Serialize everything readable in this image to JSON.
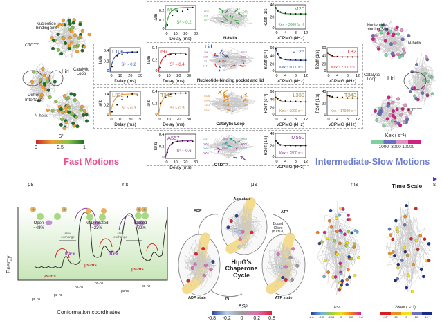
{
  "fast": {
    "title": "Fast Motions",
    "title_color": "#e8508f",
    "structure_labels": {
      "nbs": "Nucleotide-\nbinding Site",
      "ctd": "CTD",
      "ctd_sup": "amp",
      "lid": "Lid",
      "catalytic": "Catalytic\nLoop",
      "dimer": "Dimer\nInterface",
      "nhelix": "N-helix"
    },
    "colorbar": {
      "label": "S²",
      "ticks": [
        "0",
        "0.5",
        "1"
      ],
      "colors": [
        "#c62828",
        "#f0a030",
        "#8bc34a",
        "#1b6e2a"
      ]
    }
  },
  "slow": {
    "title": "Intermediate-Slow Motions",
    "title_color": "#6f7fcf",
    "structure_labels": {
      "nbs": "Nucleotide-\nbinding Site",
      "nhelix": "N-helix",
      "catalytic": "Catalytic\nLoop",
      "lid": "Lid",
      "ctd": "CTD",
      "ctd_sup": "amp"
    },
    "colorbar": {
      "label": "Kex ( s⁻¹)",
      "ticks": [
        "1000",
        "3000",
        "10000"
      ],
      "colors": [
        "#7fcfa0",
        "#6a70c0",
        "#e090c0",
        "#d02080"
      ]
    }
  },
  "relaxation_plots": [
    {
      "residue": "M20",
      "color": "#43a047",
      "annotation": "S² ~ 0.2",
      "ylabel": "Ia/Ib",
      "xlabel": "Delay (ms)",
      "xticks": [
        0,
        10,
        20,
        30
      ],
      "yticks": [
        0,
        0.1,
        0.2
      ],
      "ylim": [
        0,
        0.25
      ],
      "x": [
        2,
        7,
        12,
        17,
        22,
        27
      ],
      "y": [
        0.05,
        0.15,
        0.19,
        0.19,
        0.21,
        0.23
      ]
    },
    {
      "residue": "L106",
      "color": "#3b5bb0",
      "annotation": "S² ~ 0.2",
      "ylabel": "Ia/Ib",
      "xlabel": "Delay (ms)",
      "xticks": [
        0,
        10,
        20,
        30
      ],
      "yticks": [
        0,
        0.2,
        0.4
      ],
      "ylim": [
        0,
        0.45
      ],
      "x": [
        2,
        7,
        12,
        17,
        22,
        27
      ],
      "y": [
        0.1,
        0.3,
        0.33,
        0.35,
        0.37,
        0.37
      ]
    },
    {
      "residue": "I97",
      "color": "#e03030",
      "annotation": "S² ~ 0.4",
      "ylabel": "Ia/Ib",
      "xlabel": "Delay (ms)",
      "xticks": [
        0,
        10,
        20,
        30
      ],
      "yticks": [
        0,
        0.2,
        0.4
      ],
      "ylim": [
        0,
        0.4
      ],
      "x": [
        2,
        7,
        12,
        17,
        22,
        27
      ],
      "y": [
        0.07,
        0.25,
        0.29,
        0.29,
        0.31,
        0.29
      ]
    },
    {
      "residue": "L332",
      "color": "#f0a040",
      "label_color": "#a88a50",
      "annotation": "S² ~ 0.3",
      "ylabel": "Ia/Ib",
      "xlabel": "Delay (ms)",
      "xticks": [
        0,
        10,
        20,
        30
      ],
      "yticks": [
        0,
        0.2,
        0.4
      ],
      "ylim": [
        0,
        0.45
      ],
      "x": [
        2,
        7,
        12,
        17,
        22,
        27
      ],
      "y": [
        0.07,
        0.2,
        0.3,
        0.35,
        0.4,
        0.38
      ]
    },
    {
      "residue": "T343",
      "color": "#f0a040",
      "label_color": "#a88a50",
      "annotation": "S² ~ 0.5",
      "ylabel": "Ia/Ib",
      "xlabel": "Delay (ms)",
      "xticks": [
        0,
        10,
        20,
        30
      ],
      "yticks": [
        0,
        0.2,
        0.4
      ],
      "ylim": [
        0,
        0.4
      ],
      "x": [
        2,
        7,
        12,
        17,
        22,
        27
      ],
      "y": [
        0.2,
        0.3,
        0.35,
        0.36,
        0.37,
        0.37
      ]
    },
    {
      "residue": "A557",
      "color": "#8a3a9a",
      "annotation": "S² ~ 0.6",
      "ylabel": "Ia/Ib",
      "xlabel": "Delay (ms)",
      "xticks": [
        0,
        10,
        20,
        30
      ],
      "yticks": [
        0,
        0.2,
        0.4
      ],
      "ylim": [
        0,
        0.4
      ],
      "x": [
        2,
        7,
        12,
        17,
        22,
        27
      ],
      "y": [
        0.1,
        0.25,
        0.28,
        0.29,
        0.28,
        0.28
      ]
    }
  ],
  "cpmg_plots": [
    {
      "residue": "M20",
      "color": "#43a047",
      "annotation": "Kex ~ 3000 (s⁻¹)",
      "ylabel": "R2eff (1/s)",
      "xlabel": "νCPMG (kHz)",
      "xticks": [
        0,
        4,
        8,
        12
      ],
      "yticks": [
        0,
        20,
        40
      ],
      "ylim": [
        0,
        40
      ],
      "x": [
        0.2,
        1,
        2,
        4,
        6,
        8,
        10,
        12
      ],
      "y": [
        35,
        30,
        28,
        26,
        25,
        25,
        25,
        25
      ]
    },
    {
      "residue": "V125",
      "color": "#3b5bb0",
      "annotation": "Kex ~ 6000 s⁻¹",
      "ylabel": "R2eff (s⁻¹)",
      "xlabel": "νCPMG (kHz)",
      "xticks": [
        0,
        4,
        8,
        12
      ],
      "yticks": [
        0,
        20,
        40,
        60
      ],
      "ylim": [
        0,
        60
      ],
      "x": [
        0.2,
        1,
        2,
        4,
        6,
        8,
        10,
        12
      ],
      "y": [
        58,
        45,
        35,
        31,
        30,
        30,
        29,
        29
      ]
    },
    {
      "residue": "L32",
      "color": "#e03030",
      "annotation": "Kex ~ 7700 s⁻¹",
      "ylabel": "R2eff (1/s)",
      "xlabel": "νCPMG (kHz)",
      "xticks": [
        0,
        4,
        8,
        12
      ],
      "yticks": [
        0,
        20,
        40,
        60
      ],
      "ylim": [
        0,
        60
      ],
      "x": [
        0.2,
        1,
        2,
        4,
        6,
        8,
        10,
        12
      ],
      "y": [
        47,
        43,
        40,
        38,
        37,
        37,
        37,
        37
      ]
    },
    {
      "residue": "L339",
      "color": "#f0a040",
      "label_color": "#a88a50",
      "annotation": "Kex ~ 3000 s⁻¹",
      "ylabel": "R2eff (s⁻¹)",
      "xlabel": "νCPMG (kHz)",
      "xticks": [
        0,
        4,
        8,
        12
      ],
      "yticks": [
        0,
        20,
        40,
        60
      ],
      "ylim": [
        0,
        60
      ],
      "x": [
        0.2,
        1,
        2,
        4,
        6,
        8,
        10,
        12
      ],
      "y": [
        45,
        42,
        38,
        36,
        35,
        35,
        34,
        34
      ]
    },
    {
      "residue": "T343",
      "color": "#f0a040",
      "label_color": "#a88a50",
      "annotation": "Kex ~ 17000 s⁻¹",
      "ylabel": "R2eff (1/s)",
      "xlabel": "νCPMG (kHz)",
      "xticks": [
        0,
        4,
        8,
        12
      ],
      "yticks": [
        0,
        20,
        40
      ],
      "ylim": [
        0,
        40
      ],
      "x": [
        0.2,
        1,
        2,
        4,
        6,
        8,
        10,
        12
      ],
      "y": [
        33,
        32,
        31,
        30,
        30,
        29,
        29,
        29
      ]
    },
    {
      "residue": "M550",
      "color": "#8a3a9a",
      "annotation": "Kex ~ 2800 s⁻¹",
      "ylabel": "R2eff (1/s)",
      "xlabel": "νCPMG (kHz)",
      "xticks": [
        0,
        4,
        8,
        12
      ],
      "yticks": [
        0,
        20,
        40
      ],
      "ylim": [
        0,
        40
      ],
      "x": [
        0.2,
        1,
        2,
        4,
        6,
        8,
        10,
        12
      ],
      "y": [
        28,
        24,
        21,
        20,
        20,
        20,
        20,
        20
      ]
    }
  ],
  "insets": [
    {
      "label": "N-helix",
      "color": "#43a047",
      "residues": [
        "M20",
        "L18",
        "Q15",
        "L11",
        "L24",
        "S26",
        "N27",
        "Y27"
      ]
    },
    {
      "label": "Nucleotide-binding pocket and lid",
      "color": "#3b5bb0",
      "color2": "#e03030",
      "title": "Lid",
      "residues": [
        "L106",
        "I97",
        "E117",
        "V125",
        "F122",
        "E36",
        "L32",
        "R46",
        "T86",
        "D44",
        "L81",
        "R87"
      ]
    },
    {
      "label": "Catalytic Loop",
      "color": "#e08a20",
      "residues": [
        "R336",
        "Q345",
        "E332",
        "Q341",
        "S338",
        "E342",
        "T343",
        "N333",
        "L339",
        "L332",
        "T344"
      ]
    },
    {
      "label": "CTD",
      "label_sup": "amp",
      "color": "#20a0a0",
      "color2": "#8a3a9a",
      "residues": [
        "K552",
        "A555",
        "A557",
        "Q563",
        "A550",
        "R562",
        "D560",
        "M550",
        "L567",
        "Q563"
      ]
    }
  ],
  "timescale": {
    "labels": [
      "ps",
      "ns",
      "μs",
      "ms",
      "s"
    ],
    "title": "Time Scale"
  },
  "energy": {
    "axis_y": "Energy",
    "axis_x": "Conformation coordinates",
    "states": [
      {
        "name": "Open",
        "pct": "~48%"
      },
      {
        "name": "NTD-rotated",
        "pct": "~23%"
      },
      {
        "name": "Closed",
        "pct": "~29%"
      }
    ],
    "exchange": "slow\nexchange",
    "ms_s": "ms-s",
    "us_ms": "μs-ms",
    "ps_ns": "ps-ns"
  },
  "cycle": {
    "title": "HtpG's\nChaperone\nCycle",
    "apo": "Apo state",
    "atp_state": "ATP state",
    "adp_state": "ADP state",
    "atp": "ATP",
    "adp": "ADP",
    "pi": "Pi",
    "client": "Bound\nClient\n(Δ131Δ)",
    "colorbar": {
      "label": "ΔS²",
      "ticks": [
        "-0.8",
        "-0.2",
        "0",
        "0.2",
        "0.8"
      ],
      "colors": [
        "#2a3f9a",
        "#b8d0e8",
        "#9a9a9a",
        "#e070b0",
        "#e0203a"
      ]
    }
  },
  "right_structures": [
    {
      "colorbar": {
        "label": "ΔS²",
        "ticks": [
          "-0.8",
          "-0.3",
          "-0.15",
          "0",
          "0.2",
          "0.8"
        ],
        "colors": [
          "#2a3f9a",
          "#6fb0e0",
          "#9ccc40",
          "#f0e020",
          "#f08020",
          "#d02090"
        ]
      }
    },
    {
      "colorbar": {
        "label": "ΔKex ( s⁻¹)",
        "ticks": [
          "-10⁴",
          "-10³",
          "0",
          "10³",
          "10⁴"
        ],
        "colors": [
          "#d42020",
          "#e89020",
          "#f5e020",
          "#7070b8",
          "#1a2a8a"
        ]
      }
    }
  ]
}
